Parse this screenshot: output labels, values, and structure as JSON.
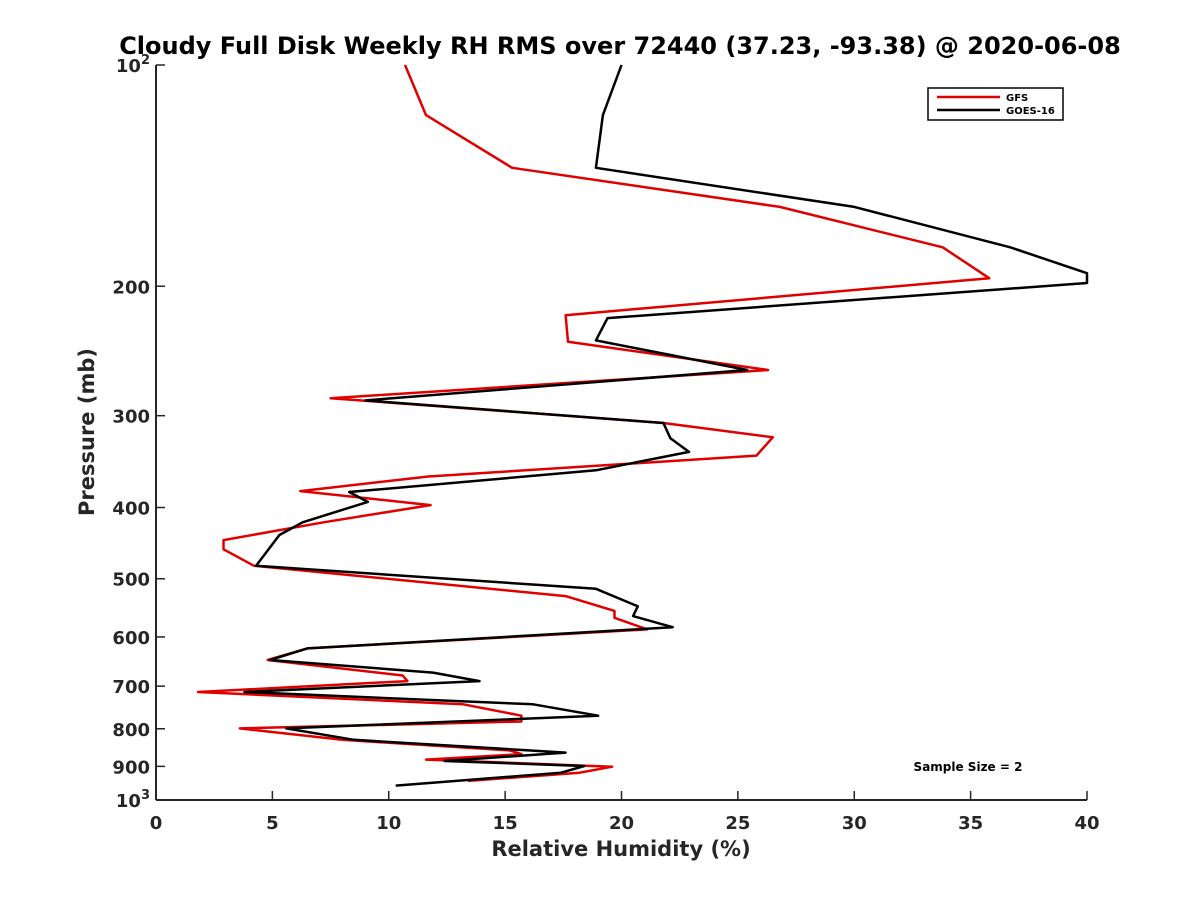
{
  "chart_data": {
    "type": "line",
    "title": "Cloudy Full Disk Weekly RH RMS over 72440 (37.23, -93.38) @ 2020-06-08",
    "xlabel": "Relative Humidity (%)",
    "ylabel": "Pressure (mb)",
    "xlim": [
      0,
      40
    ],
    "ylim": [
      100,
      1000
    ],
    "y_scale": "log",
    "y_reversed": true,
    "x_ticks": [
      0,
      5,
      10,
      15,
      20,
      25,
      30,
      35,
      40
    ],
    "x_tick_labels": [
      "0",
      "5",
      "10",
      "15",
      "20",
      "25",
      "30",
      "35",
      "40"
    ],
    "y_ticks": [
      100,
      200,
      300,
      400,
      500,
      600,
      700,
      800,
      900,
      1000
    ],
    "y_tick_labels": [
      {
        "base": "10",
        "sup": "2"
      },
      {
        "base": "200",
        "sup": ""
      },
      {
        "base": "300",
        "sup": ""
      },
      {
        "base": "400",
        "sup": ""
      },
      {
        "base": "500",
        "sup": ""
      },
      {
        "base": "600",
        "sup": ""
      },
      {
        "base": "700",
        "sup": ""
      },
      {
        "base": "800",
        "sup": ""
      },
      {
        "base": "900",
        "sup": ""
      },
      {
        "base": "10",
        "sup": "3"
      }
    ],
    "grid": false,
    "legend_position": "top-right",
    "annotation": "Sample Size = 2",
    "series": [
      {
        "name": "GFS",
        "color": "#e00000",
        "points": [
          [
            10.7,
            100
          ],
          [
            11.6,
            117
          ],
          [
            15.3,
            138
          ],
          [
            26.8,
            156
          ],
          [
            33.8,
            177
          ],
          [
            35.8,
            195
          ],
          [
            17.6,
            219
          ],
          [
            17.7,
            238
          ],
          [
            26.3,
            260
          ],
          [
            7.5,
            284
          ],
          [
            21.8,
            307
          ],
          [
            26.5,
            321
          ],
          [
            25.8,
            340
          ],
          [
            11.7,
            363
          ],
          [
            6.2,
            380
          ],
          [
            11.8,
            397
          ],
          [
            7.2,
            419
          ],
          [
            2.9,
            443
          ],
          [
            2.9,
            456
          ],
          [
            4.2,
            480
          ],
          [
            17.6,
            528
          ],
          [
            19.7,
            553
          ],
          [
            19.7,
            565
          ],
          [
            21.1,
            586
          ],
          [
            6.5,
            622
          ],
          [
            4.8,
            645
          ],
          [
            10.6,
            677
          ],
          [
            10.8,
            689
          ],
          [
            1.8,
            713
          ],
          [
            13.2,
            741
          ],
          [
            15.7,
            768
          ],
          [
            15.7,
            782
          ],
          [
            3.6,
            799
          ],
          [
            8.0,
            828
          ],
          [
            15.2,
            856
          ],
          [
            15.7,
            866
          ],
          [
            11.6,
            881
          ],
          [
            19.6,
            901
          ],
          [
            18.2,
            918
          ],
          [
            13.4,
            942
          ]
        ]
      },
      {
        "name": "GOES-16",
        "color": "#000000",
        "points": [
          [
            20.0,
            100
          ],
          [
            19.2,
            117
          ],
          [
            18.9,
            138
          ],
          [
            30.0,
            156
          ],
          [
            36.7,
            177
          ],
          [
            40.0,
            192
          ],
          [
            40.0,
            198
          ],
          [
            19.4,
            221
          ],
          [
            18.9,
            237
          ],
          [
            25.4,
            260
          ],
          [
            9.0,
            286
          ],
          [
            21.8,
            307
          ],
          [
            22.1,
            322
          ],
          [
            22.9,
            336
          ],
          [
            18.9,
            356
          ],
          [
            8.3,
            381
          ],
          [
            9.1,
            393
          ],
          [
            6.3,
            419
          ],
          [
            5.3,
            436
          ],
          [
            4.3,
            480
          ],
          [
            18.9,
            516
          ],
          [
            20.7,
            545
          ],
          [
            20.5,
            562
          ],
          [
            22.2,
            582
          ],
          [
            6.5,
            622
          ],
          [
            4.9,
            645
          ],
          [
            11.9,
            671
          ],
          [
            13.9,
            689
          ],
          [
            3.8,
            713
          ],
          [
            16.2,
            741
          ],
          [
            19.0,
            768
          ],
          [
            5.6,
            799
          ],
          [
            8.5,
            828
          ],
          [
            17.6,
            862
          ],
          [
            12.4,
            885
          ],
          [
            18.4,
            899
          ],
          [
            17.4,
            918
          ],
          [
            10.3,
            956
          ]
        ]
      }
    ]
  }
}
